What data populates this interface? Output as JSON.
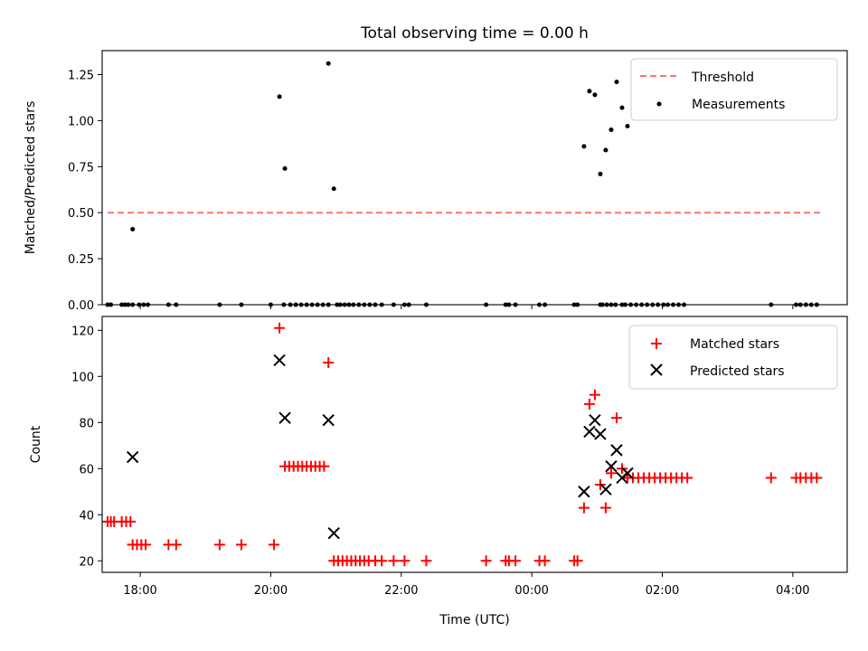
{
  "title": "Total observing time = 0.00 h",
  "xlabel": "Time (UTC)",
  "colors": {
    "threshold": "#ff7070",
    "measurement": "#000000",
    "matched": "#ff0000",
    "predicted": "#000000"
  },
  "chart_data": [
    {
      "type": "scatter",
      "ylabel": "Matched/Predicted stars",
      "xlim": [
        "17:25",
        "04:50"
      ],
      "ylim": [
        0,
        1.38
      ],
      "x_ticks": [
        "18:00",
        "20:00",
        "22:00",
        "00:00",
        "02:00",
        "04:00"
      ],
      "y_ticks": [
        "0.00",
        "0.25",
        "0.50",
        "0.75",
        "1.00",
        "1.25"
      ],
      "legend": {
        "position": "top-right",
        "entries": [
          "Threshold",
          "Measurements"
        ]
      },
      "threshold": {
        "name": "Threshold",
        "value": 0.5,
        "x_range": [
          "17:30",
          "04:25"
        ],
        "style": "dashed"
      },
      "series": [
        {
          "name": "Measurements",
          "marker": "dot",
          "points": [
            [
              "17:30",
              0
            ],
            [
              "17:33",
              0
            ],
            [
              "17:43",
              0
            ],
            [
              "17:46",
              0
            ],
            [
              "17:49",
              0
            ],
            [
              "17:53",
              0
            ],
            [
              "17:59",
              0
            ],
            [
              "18:03",
              0
            ],
            [
              "18:07",
              0
            ],
            [
              "18:26",
              0
            ],
            [
              "18:33",
              0
            ],
            [
              "19:13",
              0
            ],
            [
              "19:33",
              0
            ],
            [
              "20:00",
              0
            ],
            [
              "20:12",
              0
            ],
            [
              "20:18",
              0
            ],
            [
              "20:23",
              0
            ],
            [
              "20:28",
              0
            ],
            [
              "20:33",
              0
            ],
            [
              "20:38",
              0
            ],
            [
              "20:43",
              0
            ],
            [
              "20:48",
              0
            ],
            [
              "20:53",
              0
            ],
            [
              "21:01",
              0
            ],
            [
              "21:04",
              0
            ],
            [
              "21:08",
              0
            ],
            [
              "21:12",
              0
            ],
            [
              "21:16",
              0
            ],
            [
              "21:21",
              0
            ],
            [
              "21:26",
              0
            ],
            [
              "21:31",
              0
            ],
            [
              "21:36",
              0
            ],
            [
              "21:42",
              0
            ],
            [
              "21:53",
              0
            ],
            [
              "22:03",
              0
            ],
            [
              "22:07",
              0
            ],
            [
              "22:23",
              0
            ],
            [
              "23:18",
              0
            ],
            [
              "23:36",
              0
            ],
            [
              "23:39",
              0
            ],
            [
              "23:45",
              0
            ],
            [
              "24:07",
              0
            ],
            [
              "24:12",
              0
            ],
            [
              "24:39",
              0
            ],
            [
              "24:42",
              0
            ],
            [
              "25:03",
              0
            ],
            [
              "25:05",
              0
            ],
            [
              "25:09",
              0
            ],
            [
              "25:13",
              0
            ],
            [
              "25:17",
              0
            ],
            [
              "25:23",
              0
            ],
            [
              "25:26",
              0
            ],
            [
              "25:31",
              0
            ],
            [
              "25:36",
              0
            ],
            [
              "25:41",
              0
            ],
            [
              "25:46",
              0
            ],
            [
              "25:51",
              0
            ],
            [
              "25:56",
              0
            ],
            [
              "26:01",
              0
            ],
            [
              "26:05",
              0
            ],
            [
              "26:10",
              0
            ],
            [
              "26:15",
              0
            ],
            [
              "26:20",
              0
            ],
            [
              "27:40",
              0
            ],
            [
              "28:03",
              0
            ],
            [
              "28:07",
              0
            ],
            [
              "28:12",
              0
            ],
            [
              "28:17",
              0
            ],
            [
              "28:22",
              0
            ],
            [
              "17:53",
              0.41
            ],
            [
              "20:08",
              1.13
            ],
            [
              "20:13",
              0.74
            ],
            [
              "20:53",
              1.31
            ],
            [
              "20:58",
              0.63
            ],
            [
              "24:48",
              0.86
            ],
            [
              "24:53",
              1.16
            ],
            [
              "24:58",
              1.14
            ],
            [
              "25:03",
              0.71
            ],
            [
              "25:08",
              0.84
            ],
            [
              "25:13",
              0.95
            ],
            [
              "25:18",
              1.21
            ],
            [
              "25:23",
              1.07
            ],
            [
              "25:28",
              0.97
            ]
          ]
        }
      ]
    },
    {
      "type": "scatter",
      "ylabel": "Count",
      "xlim": [
        "17:25",
        "04:50"
      ],
      "ylim": [
        15,
        126
      ],
      "x_ticks": [
        "18:00",
        "20:00",
        "22:00",
        "00:00",
        "02:00",
        "04:00"
      ],
      "y_ticks": [
        "20",
        "40",
        "60",
        "80",
        "100",
        "120"
      ],
      "legend": {
        "position": "top-right",
        "entries": [
          "Matched stars",
          "Predicted stars"
        ]
      },
      "series": [
        {
          "name": "Matched stars",
          "marker": "plus",
          "points": [
            [
              "17:30",
              37
            ],
            [
              "17:33",
              37
            ],
            [
              "17:36",
              37
            ],
            [
              "17:43",
              37
            ],
            [
              "17:47",
              37
            ],
            [
              "17:51",
              37
            ],
            [
              "17:53",
              27
            ],
            [
              "17:57",
              27
            ],
            [
              "18:01",
              27
            ],
            [
              "18:05",
              27
            ],
            [
              "18:26",
              27
            ],
            [
              "18:33",
              27
            ],
            [
              "19:13",
              27
            ],
            [
              "19:33",
              27
            ],
            [
              "20:03",
              27
            ],
            [
              "20:08",
              121
            ],
            [
              "20:53",
              106
            ],
            [
              "20:13",
              61
            ],
            [
              "20:17",
              61
            ],
            [
              "20:21",
              61
            ],
            [
              "20:25",
              61
            ],
            [
              "20:29",
              61
            ],
            [
              "20:33",
              61
            ],
            [
              "20:37",
              61
            ],
            [
              "20:41",
              61
            ],
            [
              "20:45",
              61
            ],
            [
              "20:49",
              61
            ],
            [
              "20:58",
              20
            ],
            [
              "21:02",
              20
            ],
            [
              "21:06",
              20
            ],
            [
              "21:10",
              20
            ],
            [
              "21:14",
              20
            ],
            [
              "21:18",
              20
            ],
            [
              "21:22",
              20
            ],
            [
              "21:26",
              20
            ],
            [
              "21:30",
              20
            ],
            [
              "21:36",
              20
            ],
            [
              "21:42",
              20
            ],
            [
              "21:53",
              20
            ],
            [
              "22:03",
              20
            ],
            [
              "22:23",
              20
            ],
            [
              "23:18",
              20
            ],
            [
              "23:36",
              20
            ],
            [
              "23:39",
              20
            ],
            [
              "23:45",
              20
            ],
            [
              "24:07",
              20
            ],
            [
              "24:12",
              20
            ],
            [
              "24:39",
              20
            ],
            [
              "24:42",
              20
            ],
            [
              "24:48",
              43
            ],
            [
              "24:53",
              88
            ],
            [
              "24:58",
              92
            ],
            [
              "25:03",
              53
            ],
            [
              "25:08",
              43
            ],
            [
              "25:13",
              58
            ],
            [
              "25:18",
              82
            ],
            [
              "25:23",
              60
            ],
            [
              "25:28",
              56
            ],
            [
              "25:33",
              56
            ],
            [
              "25:38",
              56
            ],
            [
              "25:43",
              56
            ],
            [
              "25:48",
              56
            ],
            [
              "25:53",
              56
            ],
            [
              "25:58",
              56
            ],
            [
              "26:03",
              56
            ],
            [
              "26:08",
              56
            ],
            [
              "26:13",
              56
            ],
            [
              "26:18",
              56
            ],
            [
              "26:23",
              56
            ],
            [
              "27:40",
              56
            ],
            [
              "28:03",
              56
            ],
            [
              "28:07",
              56
            ],
            [
              "28:12",
              56
            ],
            [
              "28:17",
              56
            ],
            [
              "28:22",
              56
            ]
          ]
        },
        {
          "name": "Predicted stars",
          "marker": "x",
          "points": [
            [
              "17:53",
              65
            ],
            [
              "20:08",
              107
            ],
            [
              "20:13",
              82
            ],
            [
              "20:53",
              81
            ],
            [
              "20:58",
              32
            ],
            [
              "24:48",
              50
            ],
            [
              "24:53",
              76
            ],
            [
              "24:58",
              81
            ],
            [
              "25:03",
              75
            ],
            [
              "25:08",
              51
            ],
            [
              "25:13",
              61
            ],
            [
              "25:18",
              68
            ],
            [
              "25:23",
              56
            ],
            [
              "25:28",
              58
            ]
          ]
        }
      ]
    }
  ]
}
